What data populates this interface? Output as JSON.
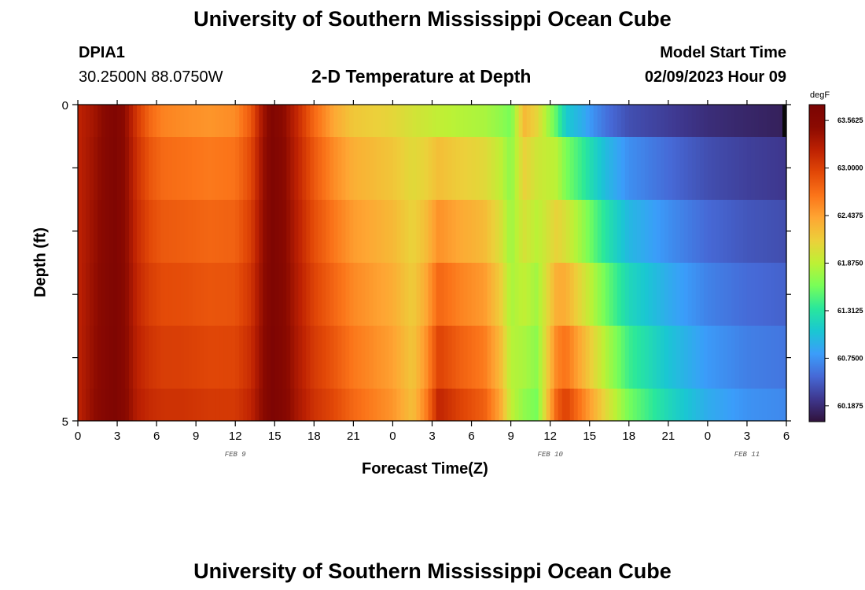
{
  "header": {
    "title": "University of Southern Mississippi Ocean Cube",
    "station": "DPIA1",
    "coords": "30.2500N  88.0750W",
    "subtitle": "2-D Temperature at Depth",
    "model_label": "Model Start Time",
    "model_time": "02/09/2023 Hour 09",
    "footer_title": "University of Southern Mississippi Ocean Cube"
  },
  "chart_data": {
    "type": "heatmap",
    "title": "2-D Temperature at Depth",
    "xlabel": "Forecast Time(Z)",
    "ylabel": "Depth (ft)",
    "unit": "degF",
    "x_ticks": [
      "0",
      "3",
      "6",
      "9",
      "12",
      "15",
      "18",
      "21",
      "0",
      "3",
      "6",
      "9",
      "12",
      "15",
      "18",
      "21",
      "0",
      "3",
      "6"
    ],
    "day_labels": [
      {
        "label": "FEB 9",
        "at_hour": 12
      },
      {
        "label": "FEB 10",
        "at_hour": 36
      },
      {
        "label": "FEB 11",
        "at_hour": 51
      }
    ],
    "y_ticks": [
      "0",
      "5"
    ],
    "x_range_hours": [
      0,
      54
    ],
    "depth_range_ft": [
      0,
      5
    ],
    "colorbar_ticks": [
      "63.5625",
      "63.0000",
      "62.4375",
      "61.8750",
      "61.3125",
      "60.7500",
      "60.1875"
    ],
    "colorbar_range": [
      60.0,
      63.75
    ],
    "colormap": [
      "#30123b",
      "#3e378e",
      "#4669d6",
      "#3b9dfa",
      "#1ac7d2",
      "#29e79c",
      "#78fe58",
      "#bdf135",
      "#ecd03a",
      "#fea633",
      "#fb7419",
      "#e24807",
      "#bd2102",
      "#8b0a01",
      "#7a0403"
    ],
    "hour_knots": [
      0,
      1.2,
      2.2,
      2.8,
      3.5,
      4.5,
      5.5,
      6.5,
      8,
      10,
      12,
      13.2,
      14,
      14.8,
      15.6,
      16.6,
      18,
      19.5,
      21,
      24,
      25.5,
      26.5,
      27.5,
      29,
      31,
      32.2,
      33,
      34,
      35,
      36.5,
      37.2,
      38.5,
      39.5,
      40.5,
      42,
      45,
      48,
      51,
      54
    ],
    "surface_temps": [
      63.2,
      63.35,
      63.55,
      63.65,
      63.5,
      63.05,
      62.75,
      62.6,
      62.55,
      62.5,
      62.55,
      62.85,
      63.3,
      63.65,
      63.5,
      63.2,
      62.75,
      62.4,
      62.2,
      62.1,
      62.0,
      61.95,
      61.9,
      61.85,
      61.8,
      61.7,
      61.6,
      62.3,
      62.1,
      61.5,
      61.1,
      60.9,
      60.7,
      60.55,
      60.4,
      60.3,
      60.2,
      60.15,
      60.1
    ],
    "bottom_temps": [
      63.2,
      63.45,
      63.6,
      63.68,
      63.55,
      63.25,
      63.15,
      63.1,
      63.1,
      63.05,
      63.05,
      63.2,
      63.45,
      63.7,
      63.6,
      63.35,
      63.1,
      62.95,
      62.75,
      62.5,
      62.25,
      62.6,
      63.2,
      63.0,
      62.8,
      62.4,
      61.9,
      61.7,
      61.6,
      62.8,
      63.0,
      62.6,
      62.3,
      62.0,
      61.6,
      61.2,
      60.9,
      60.75,
      60.7
    ]
  }
}
